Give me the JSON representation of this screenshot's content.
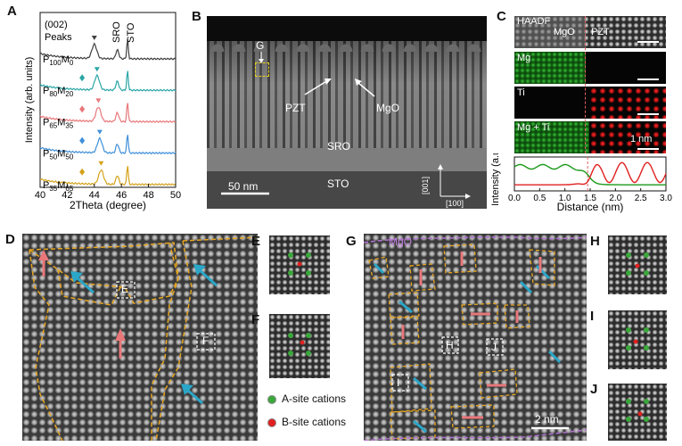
{
  "panels": {
    "A": {
      "label": "A"
    },
    "B": {
      "label": "B"
    },
    "C": {
      "label": "C"
    },
    "D": {
      "label": "D"
    },
    "E": {
      "label": "E"
    },
    "F": {
      "label": "F"
    },
    "G": {
      "label": "G"
    },
    "H": {
      "label": "H"
    },
    "I": {
      "label": "I"
    },
    "J": {
      "label": "J"
    }
  },
  "chart_data": [
    {
      "type": "line",
      "xlabel": "2Theta (degree)",
      "ylabel": "Intensity (arb. units)",
      "xlim": [
        40,
        50
      ],
      "xticks": [
        40,
        42,
        44,
        46,
        48,
        50
      ],
      "annotations": [
        "(002)",
        "Peaks",
        "SRO",
        "STO"
      ],
      "series": [
        {
          "name": "P100M0",
          "base": "P",
          "sub1": "100",
          "mid": "M",
          "sub2": "0",
          "color": "#404040",
          "marker": "triangle",
          "pzt_peak": 44.0
        },
        {
          "name": "P80M20",
          "base": "P",
          "sub1": "80",
          "mid": "M",
          "sub2": "20",
          "color": "#2aa6a6",
          "marker": "triangle",
          "pzt_peak": 44.2
        },
        {
          "name": "P65M35",
          "base": "P",
          "sub1": "65",
          "mid": "M",
          "sub2": "35",
          "color": "#e8777a",
          "marker": "triangle",
          "pzt_peak": 44.3
        },
        {
          "name": "P50M50",
          "base": "P",
          "sub1": "50",
          "mid": "M",
          "sub2": "50",
          "color": "#3f8fd8",
          "marker": "triangle",
          "pzt_peak": 44.4
        },
        {
          "name": "P35M65",
          "base": "P",
          "sub1": "35",
          "mid": "M",
          "sub2": "65",
          "color": "#d4a21a",
          "marker": "triangle",
          "pzt_peak": 44.5
        }
      ]
    },
    {
      "type": "line",
      "xlabel": "Distance (nm)",
      "ylabel": "Intensity (a.u.)",
      "xlim": [
        0.0,
        3.0
      ],
      "xticks": [
        "0.0",
        "0.5",
        "1.0",
        "1.5",
        "2.0",
        "2.5",
        "3.0"
      ],
      "series": [
        {
          "name": "Mg",
          "color": "#1a9a1a"
        },
        {
          "name": "Ti",
          "color": "#e02020"
        }
      ],
      "interface_x": 1.45
    }
  ],
  "panelB": {
    "labels": {
      "g": "G",
      "pzt": "PZT",
      "mgo": "MgO",
      "sro": "SRO",
      "sto": "STO",
      "scale": "50 nm",
      "axis1": "[001]",
      "axis2": "[100]"
    }
  },
  "panelC": {
    "maps": [
      {
        "label": "HAADF",
        "left": "MgO",
        "right": "PZT"
      },
      {
        "label": "Mg"
      },
      {
        "label": "Ti"
      },
      {
        "label": "Mg + Ti",
        "scale": "1 nm"
      }
    ]
  },
  "panelD": {
    "boxes": [
      "E",
      "F"
    ]
  },
  "panelG": {
    "region": "MgO",
    "boxes": [
      "H",
      "I",
      "J"
    ],
    "scale": "2 nm"
  },
  "legend": {
    "a_site": "A-site cations",
    "b_site": "B-site cations",
    "a_color": "#3aa83a",
    "b_color": "#e02020"
  },
  "colors": {
    "pink_arrow": "#e8777a",
    "blue_arrow": "#2aa6c8",
    "domain_line": "#e6a520",
    "mgo_line": "#b070d0"
  }
}
